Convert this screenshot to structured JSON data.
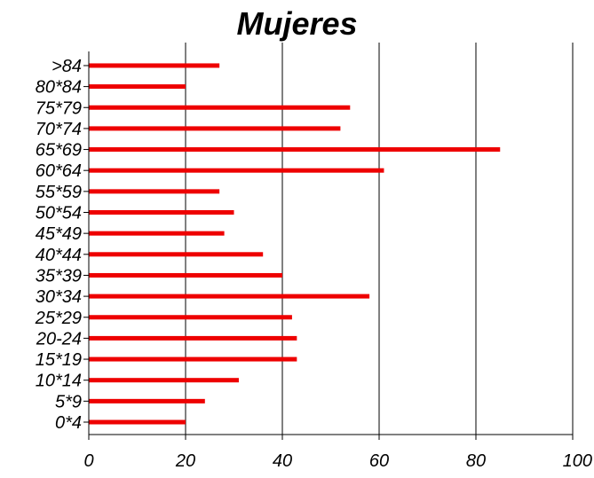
{
  "chart_data": {
    "type": "bar",
    "orientation": "horizontal",
    "title": "Mujeres",
    "xlabel": "",
    "ylabel": "",
    "categories": [
      "0*4",
      "5*9",
      "10*14",
      "15*19",
      "20-24",
      "25*29",
      "30*34",
      "35*39",
      "40*44",
      "45*49",
      "50*54",
      "55*59",
      "60*64",
      "65*69",
      "70*74",
      "75*79",
      "80*84",
      ">84"
    ],
    "values": [
      20,
      24,
      31,
      43,
      43,
      42,
      58,
      40,
      36,
      28,
      30,
      27,
      61,
      85,
      52,
      54,
      20,
      27
    ],
    "xlim": [
      0,
      100
    ],
    "xticks": [
      "0",
      "20",
      "40",
      "60",
      "80",
      "100"
    ],
    "grid": "vertical",
    "legend": "none",
    "bar_color": "#ee0000",
    "axis_color": "#000000"
  }
}
